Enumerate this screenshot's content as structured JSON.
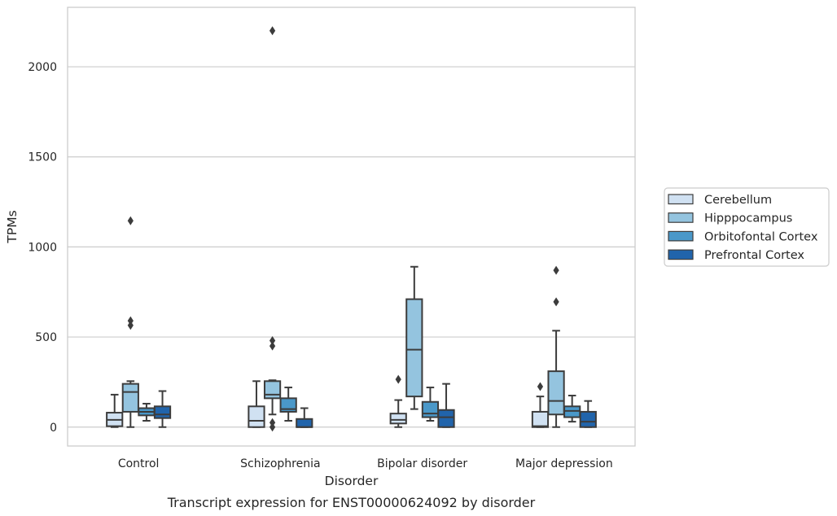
{
  "chart_data": {
    "type": "box",
    "title": "",
    "caption": "Transcript expression for ENST00000624092 by disorder",
    "xlabel": "Disorder",
    "ylabel": "TPMs",
    "ylim": [
      -105,
      2330
    ],
    "yticks": [
      0,
      500,
      1000,
      1500,
      2000
    ],
    "grid": "horizontal",
    "legend_position": "right",
    "categories": [
      "Control",
      "Schizophrenia",
      "Bipolar disorder",
      "Major depression"
    ],
    "series": [
      {
        "name": "Cerebellum",
        "color": "#d0e1f2",
        "boxes": [
          {
            "whislo": 0,
            "q1": 5,
            "med": 40,
            "q3": 80,
            "whishi": 180,
            "fliers": []
          },
          {
            "whislo": 0,
            "q1": 0,
            "med": 35,
            "q3": 115,
            "whishi": 255,
            "fliers": []
          },
          {
            "whislo": 0,
            "q1": 20,
            "med": 40,
            "q3": 75,
            "whishi": 150,
            "fliers": [
              265
            ]
          },
          {
            "whislo": 0,
            "q1": 0,
            "med": 5,
            "q3": 85,
            "whishi": 170,
            "fliers": [
              225
            ]
          }
        ]
      },
      {
        "name": "Hipppocampus",
        "color": "#94c4df",
        "boxes": [
          {
            "whislo": 0,
            "q1": 85,
            "med": 195,
            "q3": 240,
            "whishi": 255,
            "fliers": [
              565,
              590,
              1145
            ]
          },
          {
            "whislo": 70,
            "q1": 160,
            "med": 180,
            "q3": 255,
            "whishi": 260,
            "fliers": [
              0,
              25,
              450,
              480,
              2200
            ]
          },
          {
            "whislo": 100,
            "q1": 170,
            "med": 430,
            "q3": 710,
            "whishi": 890,
            "fliers": []
          },
          {
            "whislo": 0,
            "q1": 70,
            "med": 145,
            "q3": 310,
            "whishi": 535,
            "fliers": [
              695,
              870
            ]
          }
        ]
      },
      {
        "name": "Orbitofontal Cortex",
        "color": "#4a98c9",
        "boxes": [
          {
            "whislo": 35,
            "q1": 65,
            "med": 85,
            "q3": 105,
            "whishi": 130,
            "fliers": []
          },
          {
            "whislo": 35,
            "q1": 85,
            "med": 100,
            "q3": 160,
            "whishi": 220,
            "fliers": []
          },
          {
            "whislo": 35,
            "q1": 55,
            "med": 75,
            "q3": 140,
            "whishi": 220,
            "fliers": []
          },
          {
            "whislo": 30,
            "q1": 55,
            "med": 90,
            "q3": 115,
            "whishi": 175,
            "fliers": []
          }
        ]
      },
      {
        "name": "Prefrontal Cortex",
        "color": "#2164ab",
        "boxes": [
          {
            "whislo": 0,
            "q1": 50,
            "med": 70,
            "q3": 115,
            "whishi": 200,
            "fliers": []
          },
          {
            "whislo": 0,
            "q1": 0,
            "med": 0,
            "q3": 45,
            "whishi": 105,
            "fliers": []
          },
          {
            "whislo": 0,
            "q1": 0,
            "med": 55,
            "q3": 95,
            "whishi": 240,
            "fliers": []
          },
          {
            "whislo": 0,
            "q1": 0,
            "med": 30,
            "q3": 85,
            "whishi": 145,
            "fliers": []
          }
        ]
      }
    ]
  }
}
